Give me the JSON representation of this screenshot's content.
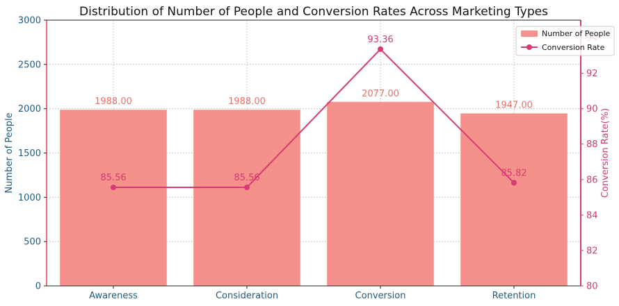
{
  "chart_data": {
    "type": "bar+line",
    "title": "Distribution of Number of People and Conversion Rates Across Marketing Types",
    "categories": [
      "Awareness",
      "Consideration",
      "Conversion",
      "Retention"
    ],
    "series": [
      {
        "name": "Number of People",
        "type": "bar",
        "axis": "left",
        "values": [
          1988,
          1988,
          2077,
          1947
        ],
        "labels": [
          "1988.00",
          "1988.00",
          "2077.00",
          "1947.00"
        ]
      },
      {
        "name": "Conversion Rate",
        "type": "line",
        "axis": "right",
        "values": [
          85.56,
          85.56,
          93.36,
          85.82
        ],
        "labels": [
          "85.56",
          "85.56",
          "93.36",
          "85.82"
        ]
      }
    ],
    "ylabel": "Number of People",
    "y2label": "Conversion Rate(%)",
    "ylim": [
      0,
      3000
    ],
    "y2lim": [
      80,
      95
    ],
    "yticks": [
      "0",
      "500",
      "1000",
      "1500",
      "2000",
      "2500",
      "3000"
    ],
    "y2ticks": [
      "80",
      "82",
      "84",
      "86",
      "88",
      "90",
      "92",
      "94"
    ],
    "grid": true,
    "legend": "top-right",
    "colors": {
      "bar": "#f4918a",
      "bar_label": "#e8706a",
      "line": "#d63a72",
      "left_axis": "#f07070",
      "left_text": "#1f5a7a",
      "right_axis": "#d63a72"
    }
  }
}
